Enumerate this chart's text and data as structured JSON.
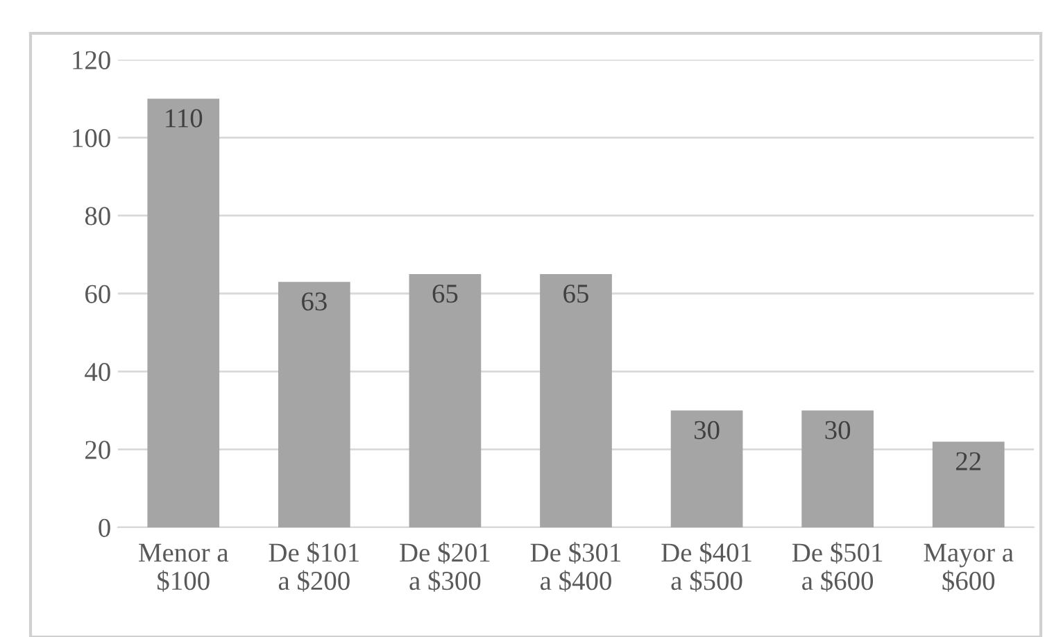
{
  "chart_data": {
    "type": "bar",
    "categories": [
      "Menor a\n$100",
      "De $101\na $200",
      "De $201\na $300",
      "De $301\na $400",
      "De $401\na $500",
      "De $501\na $600",
      "Mayor a\n$600"
    ],
    "values": [
      110,
      63,
      65,
      65,
      30,
      30,
      22
    ],
    "color": "#a5a5a5",
    "ylim": [
      0,
      120
    ],
    "yticks": [
      0,
      20,
      40,
      60,
      80,
      100,
      120
    ],
    "grid": "y",
    "data_labels": true
  }
}
